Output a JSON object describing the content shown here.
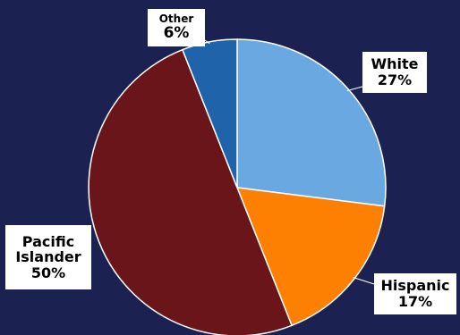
{
  "chart_data": {
    "type": "pie",
    "title": "",
    "slices": [
      {
        "label": "White",
        "pct_label": "27%",
        "value": 27,
        "color": "#6aa8e2"
      },
      {
        "label": "Hispanic",
        "pct_label": "17%",
        "value": 17,
        "color": "#fd8003"
      },
      {
        "label": "Pacific Islander",
        "pct_label": "50%",
        "value": 50,
        "color": "#6a1519"
      },
      {
        "label": "Other",
        "pct_label": "6%",
        "value": 6,
        "color": "#1f64aa"
      }
    ],
    "label_lines": {
      "white": "White",
      "hispanic": "Hispanic",
      "pacific_1": "Pacific",
      "pacific_2": "Islander",
      "other": "Other"
    },
    "slice_border_color": "#ffffff",
    "background_color": "#1b2252"
  }
}
